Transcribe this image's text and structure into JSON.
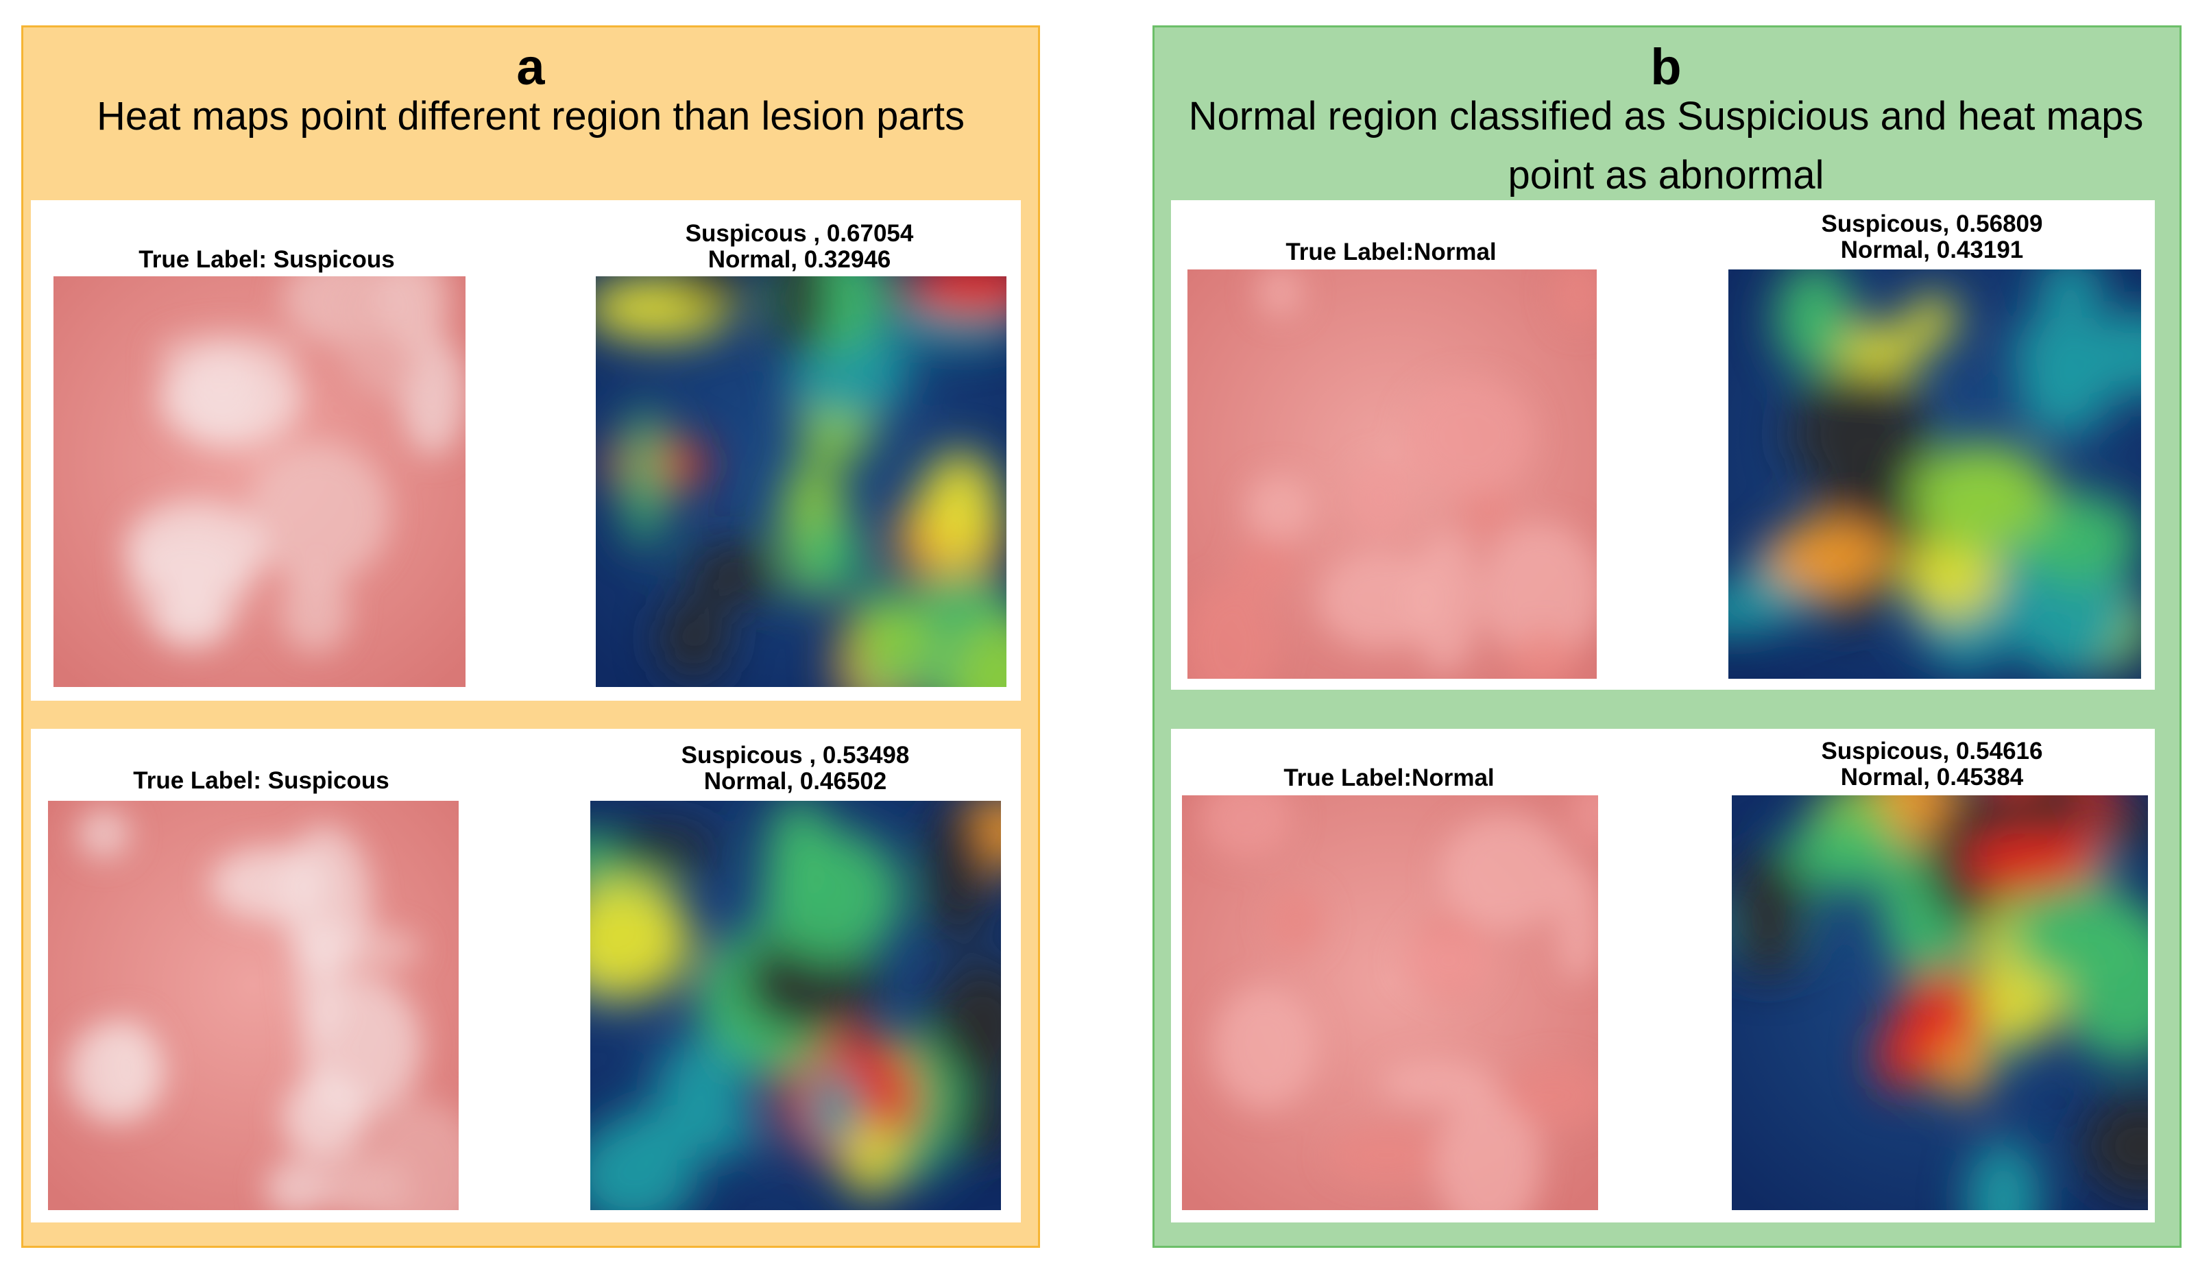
{
  "panels": [
    {
      "letter": "a",
      "title": "Heat maps point different region than lesion parts",
      "rows": [
        {
          "true_label": "True Label: Suspicous",
          "prediction": [
            "Suspicous , 0.67054",
            "Normal, 0.32946"
          ]
        },
        {
          "true_label": "True Label: Suspicous",
          "prediction": [
            "Suspicous , 0.53498",
            "Normal, 0.46502"
          ]
        }
      ]
    },
    {
      "letter": "b",
      "title": "Normal region classified as Suspicious and heat maps point as abnormal",
      "rows": [
        {
          "true_label": "True Label:Normal",
          "prediction": [
            "Suspicous, 0.56809",
            "Normal, 0.43191"
          ]
        },
        {
          "true_label": "True Label:Normal",
          "prediction": [
            "Suspicous, 0.54616",
            "Normal, 0.45384"
          ]
        }
      ]
    }
  ]
}
